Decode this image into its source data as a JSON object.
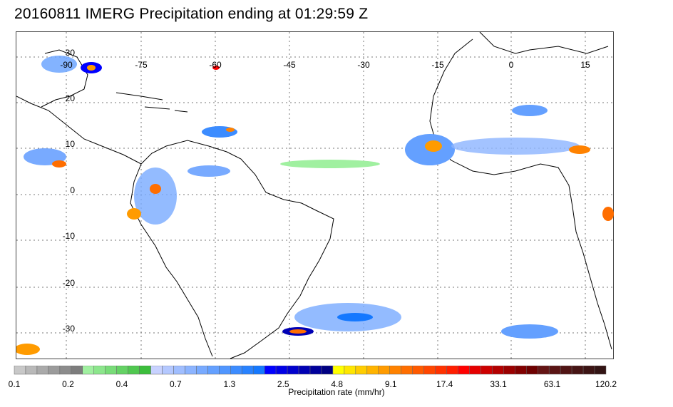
{
  "title": "20160811 IMERG Precipitation ending at 01:29:59 Z",
  "longitude_labels": [
    "-90",
    "-75",
    "-60",
    "-45",
    "-30",
    "-15",
    "0",
    "15"
  ],
  "latitude_labels": [
    "30",
    "20",
    "10",
    "0",
    "-10",
    "-20",
    "-30"
  ],
  "colorbar": {
    "title": "Precipitation rate (mm/hr)",
    "tick_labels": [
      "0.1",
      "0.2",
      "0.4",
      "0.7",
      "1.3",
      "2.5",
      "4.8",
      "9.1",
      "17.4",
      "33.1",
      "63.1",
      "120.2"
    ],
    "colors": [
      "#c8c8c8",
      "#b9b9b9",
      "#aaaaaa",
      "#9b9b9b",
      "#8c8c8c",
      "#7d7d7d",
      "#a0f0a0",
      "#8ce68c",
      "#78dc78",
      "#64d264",
      "#50c850",
      "#3cbe3c",
      "#c8d2ff",
      "#b4c8ff",
      "#a0beff",
      "#8cb4ff",
      "#78aaff",
      "#64a0ff",
      "#5096ff",
      "#3c8cff",
      "#2882ff",
      "#1478ff",
      "#0000ff",
      "#0000e6",
      "#0000cd",
      "#0000b4",
      "#00009b",
      "#000082",
      "#ffff00",
      "#ffe600",
      "#ffcd00",
      "#ffb400",
      "#ff9b00",
      "#ff8200",
      "#ff6e00",
      "#ff5a00",
      "#ff4600",
      "#ff3200",
      "#ff1e00",
      "#ff0000",
      "#e60000",
      "#cd0000",
      "#b40000",
      "#9b0000",
      "#820000",
      "#6e0000",
      "#641414",
      "#5a1414",
      "#501414",
      "#461414",
      "#3c1414",
      "#321414"
    ]
  }
}
